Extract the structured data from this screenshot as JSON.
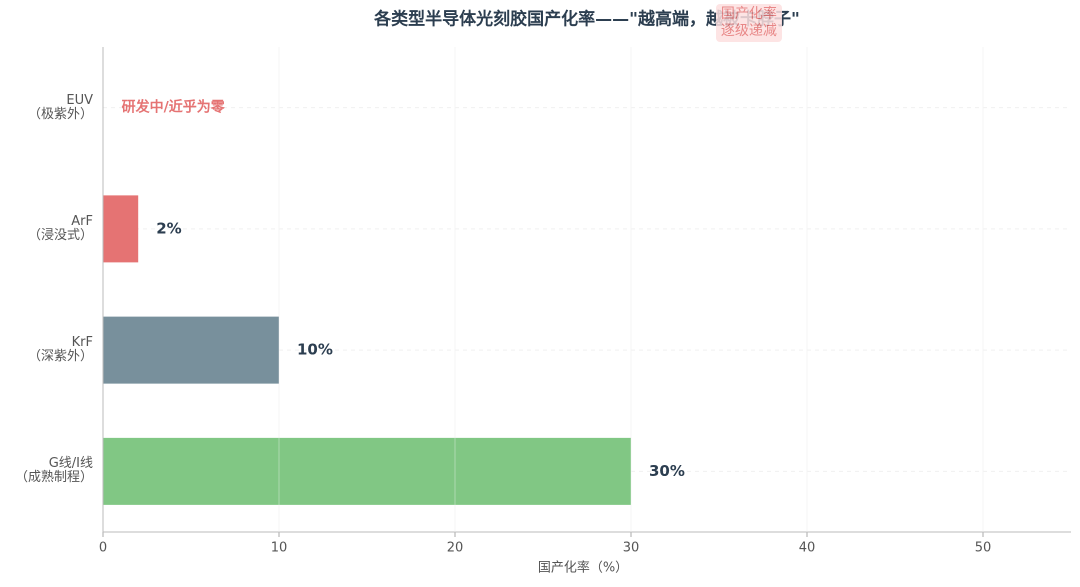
{
  "chart_data": {
    "type": "bar",
    "orientation": "horizontal",
    "title": "各类型半导体光刻胶国产化率——\"越高端，越被卡脖子\"",
    "categories": [
      "EUV\n（极紫外）",
      "ArF\n（浸没式）",
      "KrF\n（深紫外）",
      "G线/I线\n（成熟制程）"
    ],
    "values": [
      0,
      2,
      10,
      30
    ],
    "value_labels": [
      null,
      "2%",
      "10%",
      "30%"
    ],
    "colors": [
      "#e57373",
      "#e57373",
      "#78909c",
      "#81c784"
    ],
    "xlabel": "国产化率（%）",
    "xlim": [
      0,
      55
    ],
    "xticks": [
      0,
      10,
      20,
      30,
      40,
      50
    ],
    "grid": true,
    "annotations": [
      {
        "text": "研发中/近乎为零",
        "x": 1,
        "category": 0,
        "color": "#e57373"
      },
      {
        "text": "国产化率\n逐级递减",
        "x": 36.7,
        "color": "#e57373",
        "box": "#fde0e0"
      }
    ]
  }
}
